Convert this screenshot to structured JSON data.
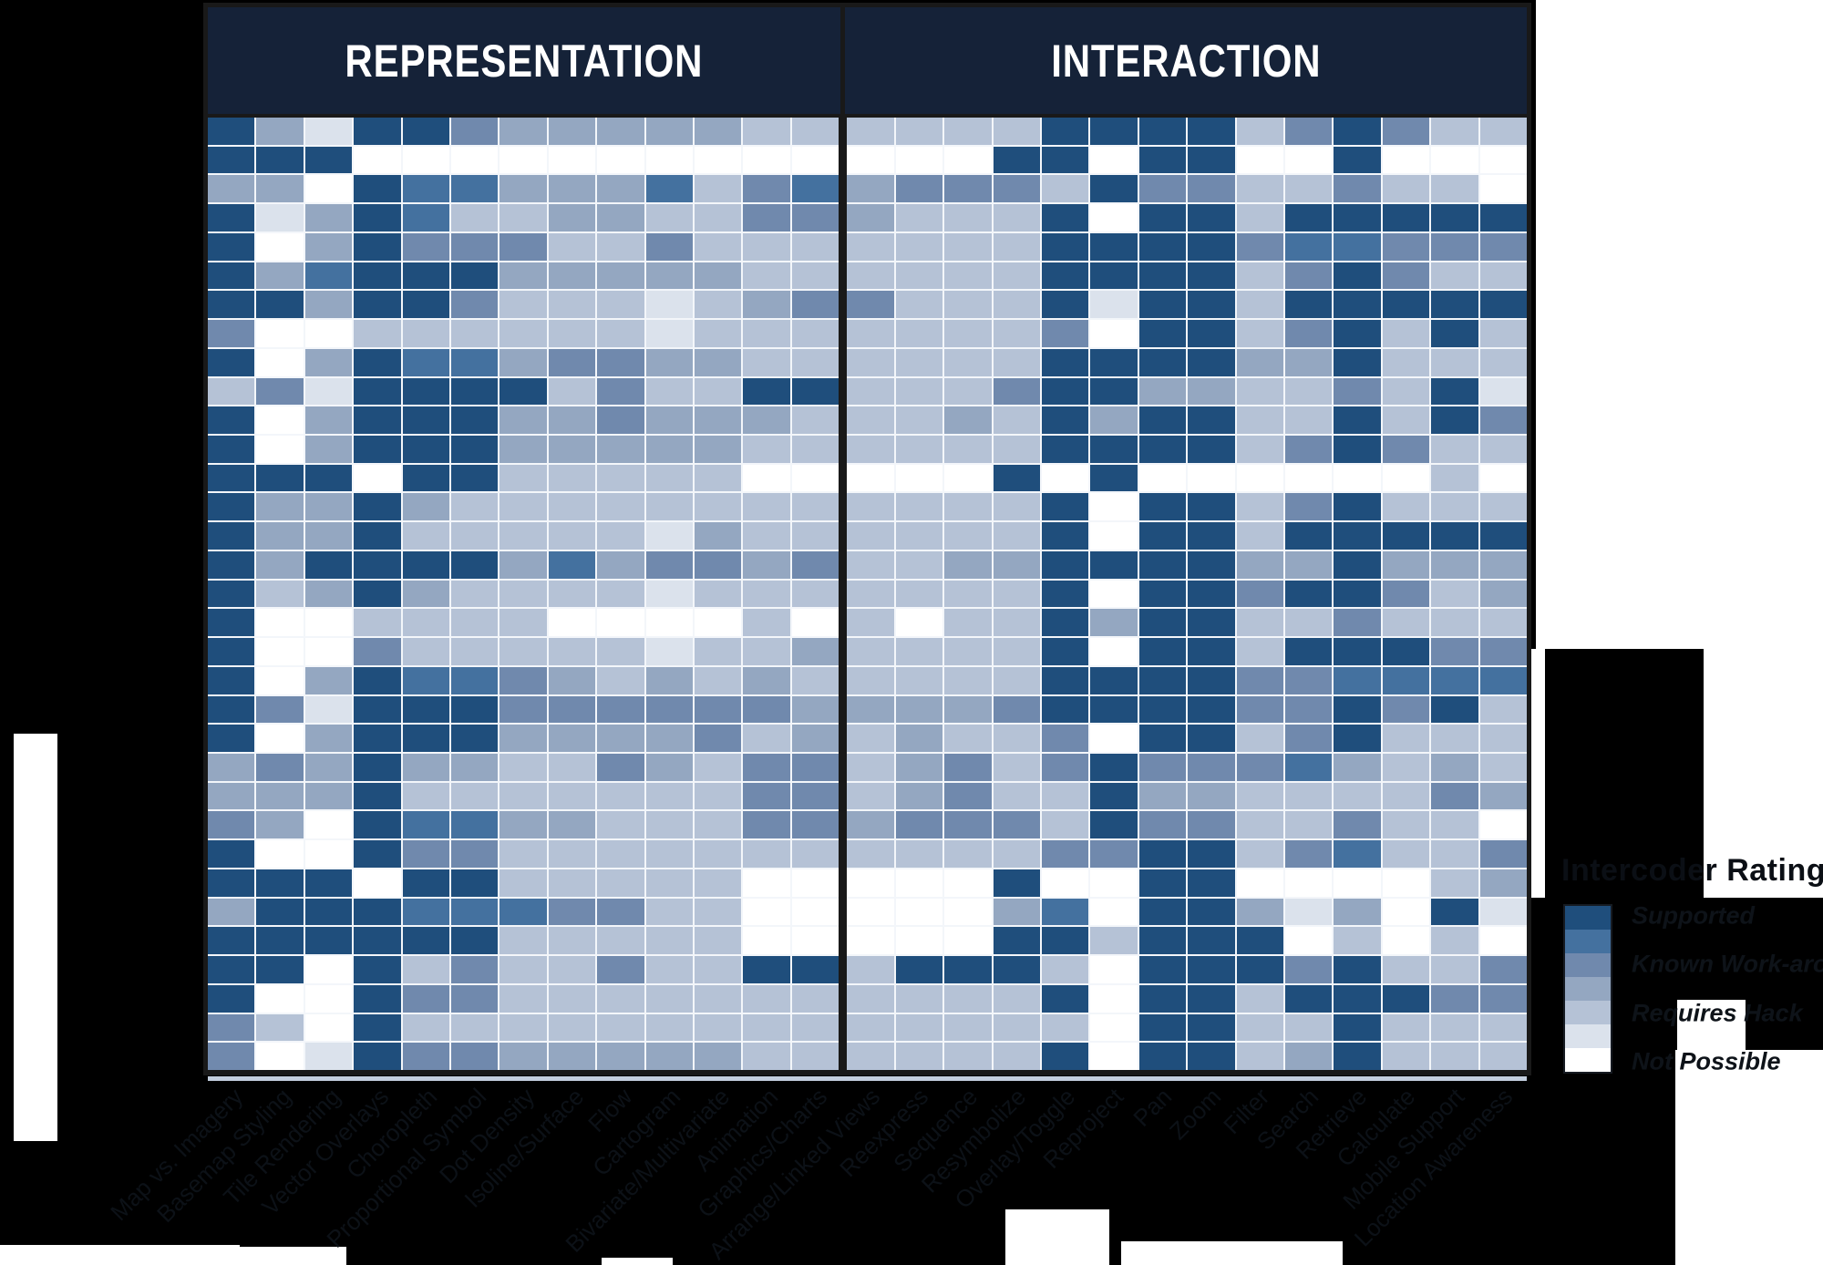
{
  "header": {
    "left_label": "REPRESENTATION",
    "right_label": "INTERACTION"
  },
  "legend": {
    "title": "Intercoder Rating",
    "ramp": [
      "6",
      "5",
      "4",
      "3",
      "2",
      "1",
      "0"
    ],
    "entries": [
      {
        "label": "Supported",
        "band_index": 0
      },
      {
        "label": "Known Work-around",
        "band_index": 2
      },
      {
        "label": "Requires Hack",
        "band_index": 4
      },
      {
        "label": "Not Possible",
        "band_index": 6
      }
    ]
  },
  "chart_data": {
    "type": "heatmap",
    "title": "",
    "column_groups": [
      {
        "label": "REPRESENTATION",
        "count": 13
      },
      {
        "label": "INTERACTION",
        "count": 14
      }
    ],
    "columns": [
      "Map vs. Imagery",
      "Basemap Styling",
      "Tile Rendering",
      "Vector Overlays",
      "Choropleth",
      "Proportional Symbol",
      "Dot Density",
      "Isoline/Surface",
      "Flow",
      "Cartogram",
      "Bivariate/Multivariate",
      "Animation",
      "Graphics/Charts",
      "Arrange/Linked Views",
      "Reexpress",
      "Sequence",
      "Resymbolize",
      "Overlay/Toggle",
      "Reproject",
      "Pan",
      "Zoom",
      "Filter",
      "Search",
      "Retrieve",
      "Calculate",
      "Mobile Support",
      "Location Awareness"
    ],
    "rows_unlabeled_count": 33,
    "value_scale": {
      "6": "Supported",
      "5": "Supported / Known Work-around",
      "4": "Known Work-around",
      "3": "Known Work-around / Requires Hack",
      "2": "Requires Hack",
      "1": "Requires Hack / Not Possible",
      "0": "Not Possible"
    },
    "palette": {
      "6": "#1f4e7c",
      "5": "#44719f",
      "4": "#7089ad",
      "3": "#94a7c1",
      "2": "#b5c2d6",
      "1": "#dbe2ec",
      "0": "#ffffff"
    },
    "matrix": [
      "631664333332222226666246422",
      "666000000000000066066006000",
      "330655333524534442644224220",
      "613652233224432226066266666",
      "603644422422222226666455444",
      "635666333332222226666246422",
      "663664222123442226166266666",
      "400222222122222224066246262",
      "603655344332222226666336222",
      "241666624226622246633224261",
      "603666334333222326366226264",
      "603666333332222226666246422",
      "666066222220000060600000020",
      "633632222222222226066246222",
      "633622222132222226066266666",
      "636666353443422336666336333",
      "623632222122222226066466423",
      "600222200002020226366224222",
      "600422222122322226066266644",
      "603655432323222226666445555",
      "641666444444333346666446462",
      "603666333342323224066246222",
      "343633224324423424644453232",
      "333622222224423422633222243",
      "430655332224434442644224220",
      "600644222222222224466245224",
      "666066222220000060066000023",
      "366655544220000035066313061",
      "666666222220000066266602020",
      "660624224226626662066646224",
      "600644222222222226066266644",
      "420622222222222222066226222",
      "401644333332222226066236222"
    ],
    "legend_position": "right",
    "grid_lines": "on"
  }
}
